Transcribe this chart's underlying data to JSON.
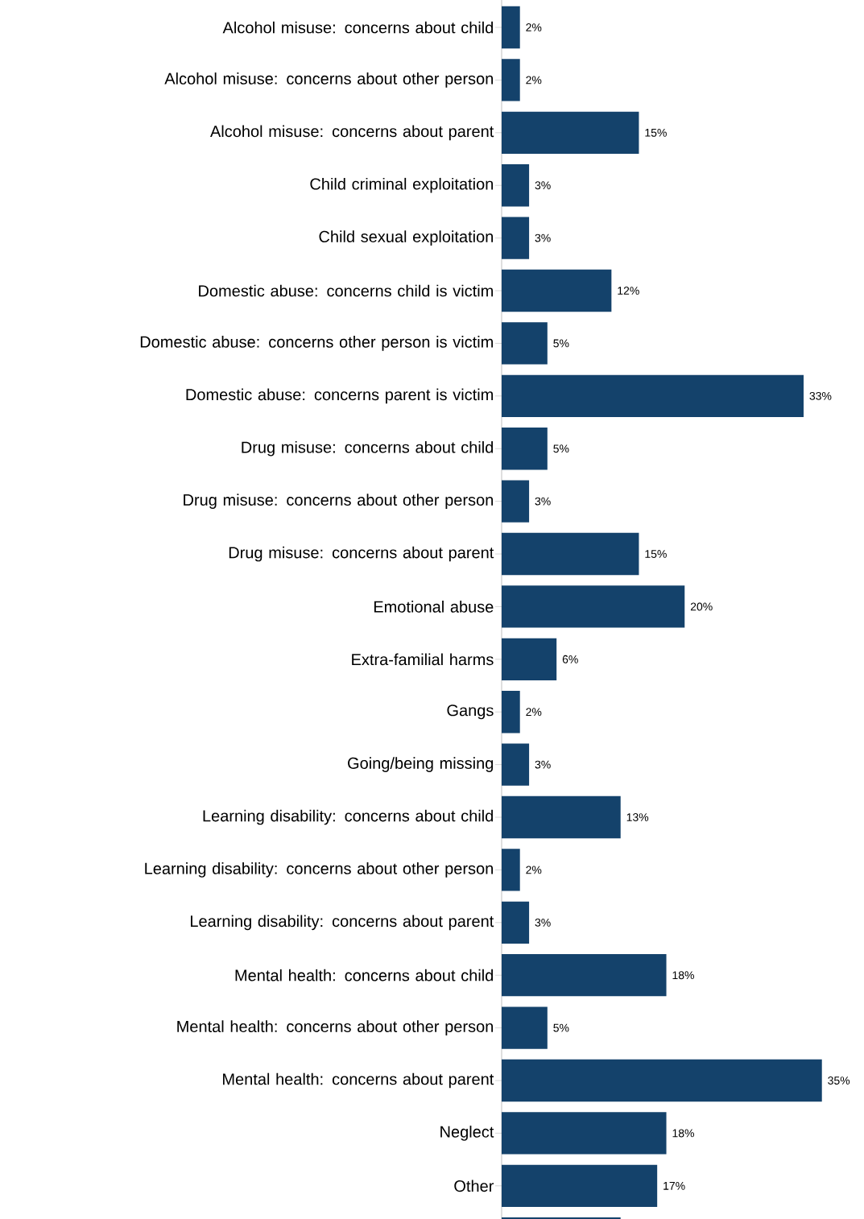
{
  "chart_data": {
    "type": "bar",
    "orientation": "horizontal",
    "color": "#14426b",
    "categories": [
      "Alcohol misuse: concerns about child",
      "Alcohol misuse: concerns about other person",
      "Alcohol misuse: concerns about parent",
      "Child criminal exploitation",
      "Child sexual exploitation",
      "Domestic abuse: concerns child is victim",
      "Domestic abuse: concerns other person is victim",
      "Domestic abuse: concerns parent is victim",
      "Drug misuse: concerns about child",
      "Drug misuse: concerns about other person",
      "Drug misuse: concerns about parent",
      "Emotional abuse",
      "Extra-familial harms",
      "Gangs",
      "Going/being missing",
      "Learning disability: concerns about child",
      "Learning disability: concerns about other person",
      "Learning disability: concerns about parent",
      "Mental health: concerns about child",
      "Mental health: concerns about other person",
      "Mental health: concerns about parent",
      "Neglect",
      "Other",
      null
    ],
    "values": [
      2,
      2,
      15,
      3,
      3,
      12,
      5,
      33,
      5,
      3,
      15,
      20,
      6,
      2,
      3,
      13,
      2,
      3,
      18,
      5,
      35,
      18,
      17,
      13
    ],
    "value_labels": [
      "2%",
      "2%",
      "15%",
      "3%",
      "3%",
      "12%",
      "5%",
      "33%",
      "5%",
      "3%",
      "15%",
      "20%",
      "6%",
      "2%",
      "3%",
      "13%",
      "2%",
      "3%",
      "18%",
      "5%",
      "35%",
      "18%",
      "17%",
      null
    ]
  }
}
